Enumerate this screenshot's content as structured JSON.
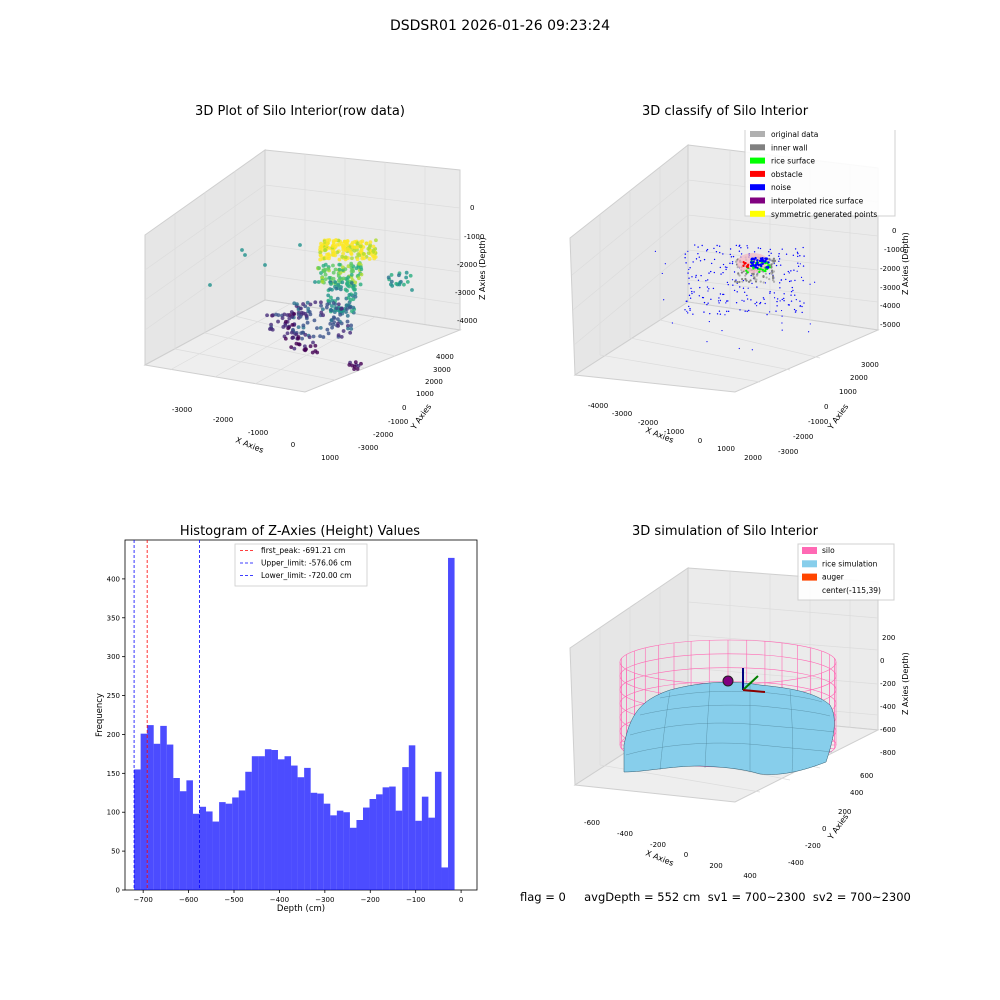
{
  "suptitle": "DSDSR01 2026-01-26 09:23:24",
  "panels": {
    "raw": {
      "title": "3D Plot of Silo Interior(row data)",
      "xlabel": "X Axies",
      "ylabel": "Y Axies",
      "zlabel": "Z Axies (Depth)",
      "xticks": [
        "-3000",
        "-2000",
        "-1000",
        "0",
        "1000"
      ],
      "yticks": [
        "-3000",
        "-2000",
        "-1000",
        "0",
        "1000",
        "2000",
        "3000",
        "4000"
      ],
      "zticks": [
        "0",
        "-1000",
        "-2000",
        "-3000",
        "-4000"
      ]
    },
    "classify": {
      "title": "3D classify of Silo Interior",
      "xlabel": "X Axies",
      "ylabel": "Y Axies",
      "zlabel": "Z Axies (Depth)",
      "xticks": [
        "-4000",
        "-3000",
        "-2000",
        "-1000",
        "0",
        "1000",
        "2000"
      ],
      "yticks": [
        "-3000",
        "-2000",
        "-1000",
        "0",
        "1000",
        "2000",
        "3000"
      ],
      "zticks": [
        "0",
        "-1000",
        "-2000",
        "-3000",
        "-4000",
        "-5000"
      ],
      "legend": [
        {
          "label": "original data",
          "color": "#b0b0b0"
        },
        {
          "label": "inner wall",
          "color": "#808080"
        },
        {
          "label": "rice surface",
          "color": "#00ff00"
        },
        {
          "label": "obstacle",
          "color": "#ff0000"
        },
        {
          "label": "noise",
          "color": "#0000ff"
        },
        {
          "label": "interpolated rice surface",
          "color": "#800080"
        },
        {
          "label": "symmetric generated points",
          "color": "#ffff00"
        }
      ]
    },
    "simulation": {
      "title": "3D simulation of Silo Interior",
      "xlabel": "X Axies",
      "ylabel": "Y Axies",
      "zlabel": "Z Axies (Depth)",
      "xticks": [
        "-600",
        "-400",
        "-200",
        "0",
        "200",
        "400"
      ],
      "yticks": [
        "-400",
        "-200",
        "0",
        "200",
        "400",
        "600"
      ],
      "zticks": [
        "200",
        "0",
        "-200",
        "-400",
        "-600",
        "-800"
      ],
      "legend": [
        {
          "label": "silo",
          "color": "#ff69b4"
        },
        {
          "label": "rice simulation",
          "color": "#87ceeb"
        },
        {
          "label": "auger",
          "color": "#ff4500"
        },
        {
          "label": "center(-115,39)",
          "color": ""
        }
      ]
    }
  },
  "footer": "flag = 0     avgDepth = 552 cm  sv1 = 700~2300  sv2 = 700~2300",
  "chart_data": {
    "type": "bar",
    "title": "Histogram of Z-Axies (Height) Values",
    "xlabel": "Depth (cm)",
    "ylabel": "Frequency",
    "xlim": [
      -740,
      35
    ],
    "ylim": [
      0,
      450
    ],
    "bar_color": "#0000ff",
    "xticks": [
      -700,
      -600,
      -500,
      -400,
      -300,
      -200,
      -100,
      0
    ],
    "yticks": [
      0,
      50,
      100,
      150,
      200,
      250,
      300,
      350,
      400
    ],
    "bin_start": -720,
    "bin_width": 14.4,
    "values": [
      155,
      201,
      212,
      188,
      211,
      187,
      144,
      127,
      141,
      98,
      107,
      101,
      88,
      113,
      111,
      119,
      128,
      152,
      172,
      172,
      181,
      180,
      168,
      172,
      160,
      145,
      157,
      125,
      124,
      111,
      96,
      102,
      100,
      80,
      90,
      106,
      117,
      123,
      132,
      133,
      102,
      158,
      186,
      89,
      120,
      93,
      152,
      29,
      427
    ],
    "vlines": [
      {
        "label": "first_peak: -691.21 cm",
        "x": -691.21,
        "color": "#ff0000"
      },
      {
        "label": "Upper_limit: -576.06 cm",
        "x": -576.06,
        "color": "#0000ff"
      },
      {
        "label": "Lower_limit: -720.00 cm",
        "x": -720.0,
        "color": "#0000ff"
      }
    ]
  }
}
